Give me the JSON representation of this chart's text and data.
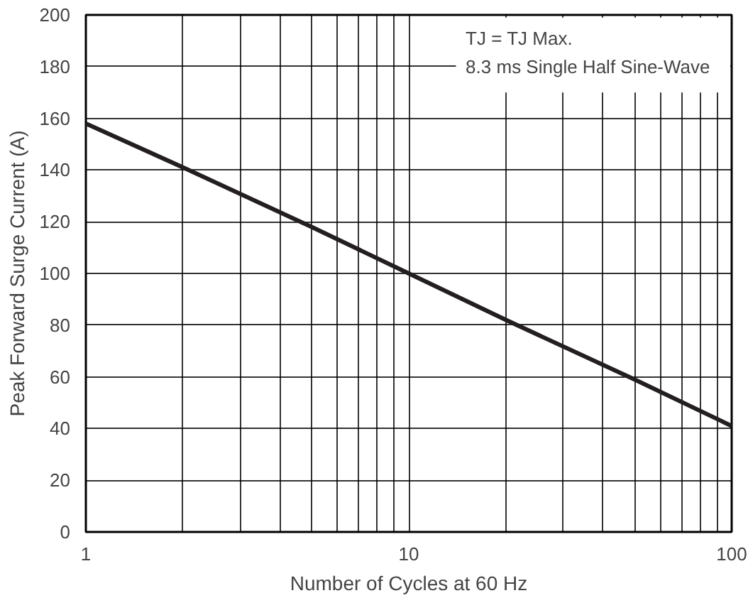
{
  "chart_data": {
    "type": "line",
    "xlabel": "Number of Cycles at 60 Hz",
    "ylabel": "Peak Forward Surge Current (A)",
    "x": [
      1,
      2,
      5,
      10,
      20,
      50,
      100
    ],
    "series": [
      {
        "color": "#231f20",
        "values": [
          158,
          141,
          118,
          100,
          82,
          59,
          41
        ]
      }
    ],
    "xlim": [
      1,
      100
    ],
    "ylim": [
      0,
      200
    ],
    "xticks": [
      1,
      {
        "value": 2,
        "label": null
      },
      {
        "value": 3,
        "label": null
      },
      {
        "value": 4,
        "label": null
      },
      {
        "value": 5,
        "label": null
      },
      {
        "value": 6,
        "label": null
      },
      {
        "value": 7,
        "label": null
      },
      {
        "value": 8,
        "label": null
      },
      {
        "value": 9,
        "label": null
      },
      10,
      {
        "value": 20,
        "label": null
      },
      {
        "value": 30,
        "label": null
      },
      {
        "value": 40,
        "label": null
      },
      {
        "value": 50,
        "label": null
      },
      {
        "value": 60,
        "label": null
      },
      {
        "value": 70,
        "label": null
      },
      {
        "value": 80,
        "label": null
      },
      {
        "value": 90,
        "label": null
      },
      100
    ],
    "yticks": [
      0,
      20,
      40,
      60,
      80,
      100,
      120,
      140,
      160,
      180,
      200
    ],
    "log": "x",
    "grid": true,
    "marker": "none",
    "line_style": "solid",
    "annotations": [
      "TJ = TJ Max.",
      "8.3 ms Single Half Sine-Wave"
    ]
  }
}
